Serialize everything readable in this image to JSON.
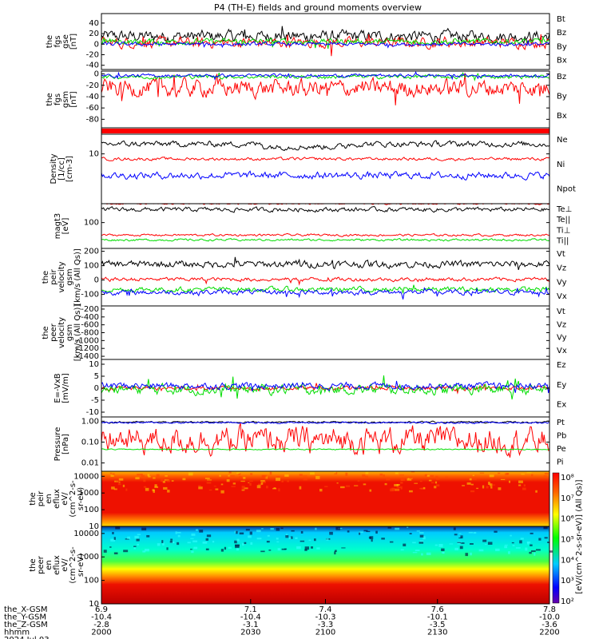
{
  "title": "P4 (TH-E) fields and ground moments overview",
  "colors": {
    "black": "#000000",
    "red": "#ff0000",
    "green": "#00dd00",
    "blue": "#0000ff"
  },
  "chart_data": [
    {
      "id": "fgs",
      "type": "line",
      "ylabel": [
        "the",
        "fgs",
        "gse",
        "[nT]"
      ],
      "yticks": [
        40,
        20,
        0,
        -20,
        -40
      ],
      "ylim": [
        -48,
        58
      ],
      "series": [
        {
          "name": "Bt",
          "color": "#000000",
          "base": 15,
          "amp": 16
        },
        {
          "name": "Bz",
          "color": "#ff0000",
          "base": 3,
          "amp": 14
        },
        {
          "name": "By",
          "color": "#00dd00",
          "base": 5,
          "amp": 8
        },
        {
          "name": "Bx",
          "color": "#0000ff",
          "base": 0,
          "amp": 5
        }
      ]
    },
    {
      "id": "fgs_gsm",
      "type": "line",
      "ylabel": [
        "the",
        "fgs",
        "gsm",
        "[nT]"
      ],
      "yticks": [
        0,
        -20,
        -40,
        -60,
        -80
      ],
      "ylim": [
        -95,
        5
      ],
      "series": [
        {
          "name": "Bz",
          "color": "#ff0000",
          "base": -25,
          "amp": 22
        },
        {
          "name": "By",
          "color": "#00dd00",
          "base": -5,
          "amp": 5
        },
        {
          "name": "Bx",
          "color": "#0000ff",
          "base": -3,
          "amp": 4
        }
      ]
    },
    {
      "id": "density",
      "type": "line",
      "ylabel": [
        "Density",
        "[1/cc]",
        "[cm-3]"
      ],
      "yticks": [
        10
      ],
      "log": true,
      "series": [
        {
          "name": "Ne",
          "color": "#ff0000"
        },
        {
          "name": "Ni",
          "color": "#000000"
        },
        {
          "name": "Npot",
          "color": "#0000ff"
        }
      ]
    },
    {
      "id": "temperature",
      "type": "line",
      "ylabel": [
        "magt3",
        "[eV]"
      ],
      "yticks": [
        100
      ],
      "log": true,
      "series": [
        {
          "name": "Te⊥",
          "color": "#ff0000"
        },
        {
          "name": "Te||",
          "color": "#000000"
        },
        {
          "name": "Ti⊥",
          "color": "#ff0000"
        },
        {
          "name": "Ti||",
          "color": "#00dd00"
        }
      ]
    },
    {
      "id": "peir_velocity",
      "type": "line",
      "ylabel": [
        "the",
        "peir",
        "velocity",
        "gsm",
        "[km/s (All Qs)]"
      ],
      "yticks": [
        200,
        100,
        0,
        -100
      ],
      "ylim": [
        -180,
        220
      ],
      "series": [
        {
          "name": "Vt",
          "color": "#000000",
          "base": 110,
          "amp": 35
        },
        {
          "name": "Vz",
          "color": "#ff0000",
          "base": 5,
          "amp": 20
        },
        {
          "name": "Vy",
          "color": "#00dd00",
          "base": -65,
          "amp": 25
        },
        {
          "name": "Vx",
          "color": "#0000ff",
          "base": -85,
          "amp": 25
        }
      ]
    },
    {
      "id": "peer_velocity",
      "type": "line",
      "ylabel": [
        "the",
        "peer",
        "velocity",
        "gsm",
        "[km/s (All Qs)]"
      ],
      "yticks": [
        -200,
        -400,
        -600,
        -800,
        -1000,
        -1200,
        -1400
      ],
      "ylim": [
        -1480,
        -120
      ],
      "series": [
        {
          "name": "Vt",
          "color": "#000000"
        },
        {
          "name": "Vz",
          "color": "#ff0000"
        },
        {
          "name": "Vy",
          "color": "#00dd00"
        },
        {
          "name": "Vx",
          "color": "#0000ff"
        }
      ]
    },
    {
      "id": "efield",
      "type": "line",
      "ylabel": [
        "E=-VxB",
        "[mV/m]"
      ],
      "yticks": [
        10,
        5,
        0,
        -5,
        -10
      ],
      "ylim": [
        -12,
        12
      ],
      "series": [
        {
          "name": "Ez",
          "color": "#ff0000",
          "base": 0,
          "amp": 1.2
        },
        {
          "name": "Ey",
          "color": "#00dd00",
          "base": -0.5,
          "amp": 3
        },
        {
          "name": "Ex",
          "color": "#0000ff",
          "base": 1,
          "amp": 2
        }
      ]
    },
    {
      "id": "pressure",
      "type": "line",
      "ylabel": [
        "Pressure",
        "[nPa]"
      ],
      "yticks": [
        1.0,
        0.1,
        0.01
      ],
      "ytick_labels": [
        "1.00",
        "0.10",
        "0.01"
      ],
      "log": true,
      "series": [
        {
          "name": "Pt",
          "color": "#000000"
        },
        {
          "name": "Pb",
          "color": "#ff0000"
        },
        {
          "name": "Pe",
          "color": "#00dd00"
        },
        {
          "name": "Pi",
          "color": "#0000ff"
        }
      ]
    },
    {
      "id": "peir_eflux",
      "type": "heatmap",
      "ylabel": [
        "the",
        "peir",
        "en",
        "eflux",
        "eV/",
        "(cm^2-s-",
        "sr-eV)"
      ],
      "yticks": [
        10000,
        1000,
        100,
        10
      ]
    },
    {
      "id": "peer_eflux",
      "type": "heatmap",
      "ylabel": [
        "the",
        "peer",
        "en",
        "eflux",
        "eV/",
        "(cm^2-s-",
        "sr-eV)"
      ],
      "yticks": [
        10000,
        1000,
        100,
        10
      ]
    }
  ],
  "colorbar": {
    "ticks": [
      "10⁸",
      "10⁷",
      "10⁶",
      "10⁵",
      "10⁴",
      "10³",
      "10²"
    ],
    "label": "[eV/(cm^2-s-sr-eV)] (All Qs)]"
  },
  "xaxis": {
    "rows": [
      {
        "label": "the_X-GSM",
        "values": [
          "6.9",
          "7.1",
          "7.4",
          "7.6",
          "7.8"
        ]
      },
      {
        "label": "the_Y-GSM",
        "values": [
          "-10.4",
          "-10.4",
          "-10.3",
          "-10.1",
          "-10.0"
        ]
      },
      {
        "label": "the_Z-GSM",
        "values": [
          "-2.8",
          "-3.1",
          "-3.3",
          "-3.5",
          "-3.6"
        ]
      },
      {
        "label": "hhmm",
        "values": [
          "2000",
          "2030",
          "2100",
          "2130",
          "2200"
        ]
      }
    ],
    "date": "2024 Jul 03"
  }
}
